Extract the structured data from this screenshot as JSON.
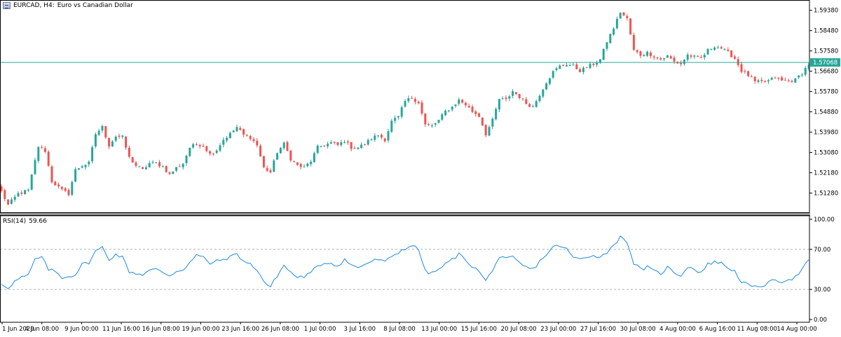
{
  "header": {
    "symbol_timeframe": "EURCAD, H4:",
    "description": "Euro vs Canadian Dollar"
  },
  "indicator": {
    "name": "RSI(14)",
    "value": "59.66"
  },
  "colors": {
    "bull": "#26a69a",
    "bear": "#ef5350",
    "price_line": "#26a69a",
    "rsi_line": "#1e88e5",
    "axis": "#000000",
    "grid_dashed": "#b0b0b0"
  },
  "chart_data": [
    {
      "type": "candlestick",
      "title": "EURCAD, H4: Euro vs Canadian Dollar",
      "xlabel": "",
      "ylabel": "",
      "ylim": [
        1.5052,
        1.5965
      ],
      "grid": false,
      "y_ticks": [
        "1.59380",
        "1.58480",
        "1.57580",
        "1.56680",
        "1.55780",
        "1.54880",
        "1.53980",
        "1.53080",
        "1.52180",
        "1.51280"
      ],
      "x_ticks": [
        "1 Jun 2020",
        "4 Jun 08:00",
        "9 Jun 00:00",
        "11 Jun 16:00",
        "16 Jun 08:00",
        "19 Jun 00:00",
        "23 Jun 16:00",
        "26 Jun 08:00",
        "1 Jul 00:00",
        "3 Jul 16:00",
        "8 Jul 08:00",
        "13 Jul 00:00",
        "15 Jul 16:00",
        "20 Jul 08:00",
        "23 Jul 00:00",
        "27 Jul 16:00",
        "30 Jul 08:00",
        "4 Aug 00:00",
        "6 Aug 16:00",
        "11 Aug 08:00",
        "14 Aug 00:00"
      ],
      "current_price": "1.57068",
      "close_path": [
        [
          0,
          1.5135
        ],
        [
          2,
          1.5075
        ],
        [
          5,
          1.5125
        ],
        [
          8,
          1.514
        ],
        [
          11,
          1.5335
        ],
        [
          13,
          1.5315
        ],
        [
          15,
          1.518
        ],
        [
          18,
          1.514
        ],
        [
          20,
          1.5125
        ],
        [
          22,
          1.523
        ],
        [
          24,
          1.525
        ],
        [
          26,
          1.526
        ],
        [
          28,
          1.539
        ],
        [
          30,
          1.542
        ],
        [
          32,
          1.534
        ],
        [
          34,
          1.538
        ],
        [
          36,
          1.5375
        ],
        [
          38,
          1.5285
        ],
        [
          40,
          1.525
        ],
        [
          42,
          1.523
        ],
        [
          44,
          1.526
        ],
        [
          46,
          1.526
        ],
        [
          48,
          1.5245
        ],
        [
          50,
          1.521
        ],
        [
          52,
          1.524
        ],
        [
          54,
          1.526
        ],
        [
          56,
          1.533
        ],
        [
          58,
          1.5345
        ],
        [
          60,
          1.534
        ],
        [
          62,
          1.53
        ],
        [
          64,
          1.532
        ],
        [
          66,
          1.5365
        ],
        [
          68,
          1.539
        ],
        [
          70,
          1.542
        ],
        [
          72,
          1.5385
        ],
        [
          74,
          1.5375
        ],
        [
          76,
          1.534
        ],
        [
          78,
          1.524
        ],
        [
          80,
          1.522
        ],
        [
          82,
          1.531
        ],
        [
          84,
          1.5345
        ],
        [
          86,
          1.528
        ],
        [
          88,
          1.525
        ],
        [
          90,
          1.524
        ],
        [
          92,
          1.527
        ],
        [
          94,
          1.533
        ],
        [
          96,
          1.534
        ],
        [
          98,
          1.535
        ],
        [
          100,
          1.534
        ],
        [
          102,
          1.536
        ],
        [
          104,
          1.533
        ],
        [
          106,
          1.533
        ],
        [
          108,
          1.5345
        ],
        [
          110,
          1.537
        ],
        [
          112,
          1.5385
        ],
        [
          114,
          1.5365
        ],
        [
          116,
          1.5445
        ],
        [
          118,
          1.5465
        ],
        [
          120,
          1.5535
        ],
        [
          122,
          1.555
        ],
        [
          124,
          1.553
        ],
        [
          126,
          1.543
        ],
        [
          128,
          1.5425
        ],
        [
          130,
          1.545
        ],
        [
          132,
          1.549
        ],
        [
          134,
          1.551
        ],
        [
          136,
          1.554
        ],
        [
          138,
          1.552
        ],
        [
          140,
          1.549
        ],
        [
          142,
          1.547
        ],
        [
          144,
          1.539
        ],
        [
          146,
          1.545
        ],
        [
          148,
          1.5545
        ],
        [
          150,
          1.554
        ],
        [
          152,
          1.558
        ],
        [
          154,
          1.5555
        ],
        [
          156,
          1.5525
        ],
        [
          158,
          1.551
        ],
        [
          160,
          1.5565
        ],
        [
          162,
          1.562
        ],
        [
          164,
          1.5665
        ],
        [
          166,
          1.569
        ],
        [
          168,
          1.57
        ],
        [
          170,
          1.569
        ],
        [
          172,
          1.567
        ],
        [
          174,
          1.5685
        ],
        [
          176,
          1.57
        ],
        [
          178,
          1.572
        ],
        [
          180,
          1.58
        ],
        [
          182,
          1.586
        ],
        [
          184,
          1.593
        ],
        [
          186,
          1.59
        ],
        [
          188,
          1.576
        ],
        [
          190,
          1.574
        ],
        [
          192,
          1.575
        ],
        [
          194,
          1.5735
        ],
        [
          196,
          1.572
        ],
        [
          198,
          1.5735
        ],
        [
          200,
          1.571
        ],
        [
          202,
          1.57
        ],
        [
          204,
          1.574
        ],
        [
          206,
          1.573
        ],
        [
          208,
          1.5725
        ],
        [
          210,
          1.576
        ],
        [
          212,
          1.578
        ],
        [
          214,
          1.577
        ],
        [
          216,
          1.575
        ],
        [
          218,
          1.5725
        ],
        [
          220,
          1.567
        ],
        [
          222,
          1.565
        ],
        [
          224,
          1.562
        ],
        [
          226,
          1.562
        ],
        [
          228,
          1.5625
        ],
        [
          230,
          1.564
        ],
        [
          232,
          1.5625
        ],
        [
          234,
          1.5625
        ],
        [
          236,
          1.563
        ],
        [
          238,
          1.566
        ],
        [
          240,
          1.57
        ]
      ]
    },
    {
      "type": "line",
      "title": "RSI(14) 59.66",
      "ylim": [
        0,
        100
      ],
      "y_ticks": [
        "100.00",
        "70.00",
        "30.00",
        "0.00"
      ],
      "levels": [
        70,
        30
      ],
      "series": [
        {
          "name": "RSI(14)",
          "points": [
            [
              0,
              35
            ],
            [
              2,
              32
            ],
            [
              4,
              38
            ],
            [
              6,
              42
            ],
            [
              8,
              44
            ],
            [
              10,
              60
            ],
            [
              12,
              62
            ],
            [
              14,
              50
            ],
            [
              16,
              48
            ],
            [
              18,
              42
            ],
            [
              20,
              43
            ],
            [
              22,
              45
            ],
            [
              24,
              55
            ],
            [
              26,
              57
            ],
            [
              28,
              68
            ],
            [
              30,
              72
            ],
            [
              32,
              60
            ],
            [
              34,
              65
            ],
            [
              36,
              62
            ],
            [
              38,
              48
            ],
            [
              40,
              46
            ],
            [
              42,
              45
            ],
            [
              44,
              49
            ],
            [
              46,
              50
            ],
            [
              48,
              47
            ],
            [
              50,
              44
            ],
            [
              52,
              48
            ],
            [
              54,
              50
            ],
            [
              56,
              57
            ],
            [
              58,
              64
            ],
            [
              60,
              62
            ],
            [
              62,
              56
            ],
            [
              64,
              58
            ],
            [
              66,
              60
            ],
            [
              68,
              62
            ],
            [
              70,
              66
            ],
            [
              72,
              58
            ],
            [
              74,
              55
            ],
            [
              76,
              50
            ],
            [
              78,
              38
            ],
            [
              80,
              32
            ],
            [
              82,
              44
            ],
            [
              84,
              54
            ],
            [
              86,
              47
            ],
            [
              88,
              42
            ],
            [
              90,
              43
            ],
            [
              92,
              46
            ],
            [
              94,
              54
            ],
            [
              96,
              56
            ],
            [
              98,
              57
            ],
            [
              100,
              53
            ],
            [
              102,
              60
            ],
            [
              104,
              54
            ],
            [
              106,
              52
            ],
            [
              108,
              55
            ],
            [
              110,
              58
            ],
            [
              112,
              60
            ],
            [
              114,
              57
            ],
            [
              116,
              63
            ],
            [
              118,
              67
            ],
            [
              120,
              71
            ],
            [
              122,
              74
            ],
            [
              124,
              70
            ],
            [
              126,
              48
            ],
            [
              128,
              46
            ],
            [
              130,
              50
            ],
            [
              132,
              55
            ],
            [
              134,
              60
            ],
            [
              136,
              65
            ],
            [
              138,
              60
            ],
            [
              140,
              53
            ],
            [
              142,
              48
            ],
            [
              144,
              38
            ],
            [
              146,
              50
            ],
            [
              148,
              62
            ],
            [
              150,
              60
            ],
            [
              152,
              62
            ],
            [
              154,
              56
            ],
            [
              156,
              52
            ],
            [
              158,
              50
            ],
            [
              160,
              58
            ],
            [
              162,
              65
            ],
            [
              164,
              72
            ],
            [
              166,
              74
            ],
            [
              168,
              70
            ],
            [
              170,
              62
            ],
            [
              172,
              60
            ],
            [
              174,
              62
            ],
            [
              176,
              65
            ],
            [
              178,
              62
            ],
            [
              180,
              67
            ],
            [
              182,
              75
            ],
            [
              184,
              82
            ],
            [
              186,
              78
            ],
            [
              188,
              56
            ],
            [
              190,
              50
            ],
            [
              192,
              52
            ],
            [
              194,
              48
            ],
            [
              196,
              46
            ],
            [
              198,
              52
            ],
            [
              200,
              47
            ],
            [
              202,
              44
            ],
            [
              204,
              53
            ],
            [
              206,
              50
            ],
            [
              208,
              47
            ],
            [
              210,
              55
            ],
            [
              212,
              58
            ],
            [
              214,
              56
            ],
            [
              216,
              52
            ],
            [
              218,
              48
            ],
            [
              220,
              38
            ],
            [
              222,
              34
            ],
            [
              224,
              32
            ],
            [
              226,
              34
            ],
            [
              228,
              36
            ],
            [
              230,
              40
            ],
            [
              232,
              38
            ],
            [
              234,
              40
            ],
            [
              236,
              42
            ],
            [
              238,
              50
            ],
            [
              240,
              59.66
            ]
          ]
        }
      ]
    }
  ]
}
